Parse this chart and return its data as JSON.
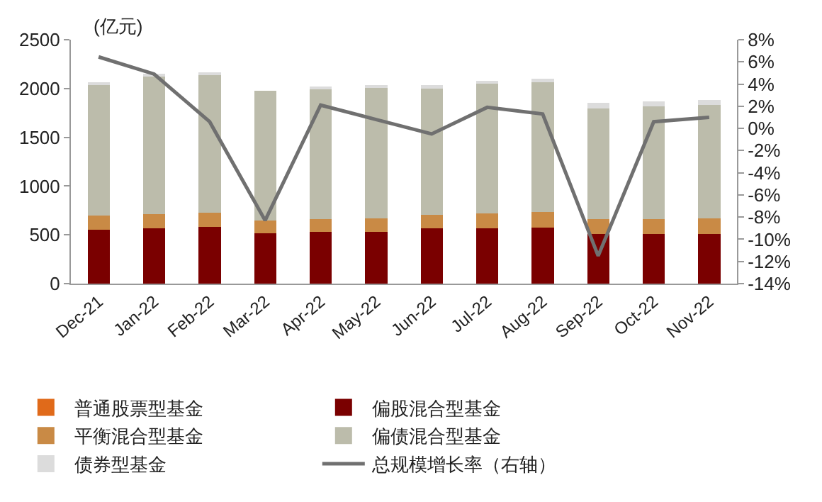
{
  "chart_data": {
    "type": "bar",
    "stacked": true,
    "categories": [
      "Dec-21",
      "Jan-22",
      "Feb-22",
      "Mar-22",
      "Apr-22",
      "May-22",
      "Jun-22",
      "Jul-22",
      "Aug-22",
      "Sep-22",
      "Oct-22",
      "Nov-22"
    ],
    "series": [
      {
        "name": "普通股票型基金",
        "color": "#e06a1a",
        "values": [
          0,
          0,
          0,
          0,
          0,
          0,
          0,
          0,
          0,
          0,
          0,
          0
        ]
      },
      {
        "name": "偏股混合型基金",
        "color": "#7a0000",
        "values": [
          555,
          565,
          578,
          515,
          528,
          528,
          564,
          564,
          573,
          510,
          510,
          510
        ]
      },
      {
        "name": "平衡混合型基金",
        "color": "#c98a45",
        "values": [
          145,
          145,
          146,
          134,
          134,
          142,
          138,
          159,
          158,
          150,
          150,
          159
        ]
      },
      {
        "name": "偏债混合型基金",
        "color": "#bcbcab",
        "values": [
          1345,
          1420,
          1426,
          1331,
          1338,
          1342,
          1296,
          1325,
          1330,
          1138,
          1158,
          1162
        ]
      },
      {
        "name": "债券型基金",
        "color": "#dcdcdc",
        "values": [
          10,
          10,
          10,
          null,
          10,
          10,
          34,
          30,
          38,
          54,
          51,
          54
        ]
      },
      {
        "name": "总规模增长率（右轴）",
        "type": "line",
        "axis": "y2",
        "color": "#707070",
        "values": [
          6.45,
          4.9,
          0.6,
          -8.3,
          2.1,
          0.8,
          -0.5,
          1.9,
          1.3,
          -11.5,
          0.6,
          1.0
        ]
      }
    ],
    "ylim": [
      0,
      2500
    ],
    "yticks": [
      0,
      500,
      1000,
      1500,
      2000,
      2500
    ],
    "y2lim": [
      -14,
      8
    ],
    "y2ticks": [
      {
        "value": -14,
        "label": "-14%"
      },
      {
        "value": -12,
        "label": "-12%"
      },
      {
        "value": -10,
        "label": "-10%"
      },
      {
        "value": -8,
        "label": "-8%"
      },
      {
        "value": -6,
        "label": "-6%"
      },
      {
        "value": -4,
        "label": "-4%"
      },
      {
        "value": -2,
        "label": "-2%"
      },
      {
        "value": 0,
        "label": "0%"
      },
      {
        "value": 2,
        "label": "2%"
      },
      {
        "value": 4,
        "label": "4%"
      },
      {
        "value": 6,
        "label": "6%"
      },
      {
        "value": 8,
        "label": "8%"
      }
    ],
    "annotations": [
      "(亿元)"
    ],
    "legend": "bottom",
    "grid": false,
    "marker": "none",
    "line_style": "solid"
  }
}
